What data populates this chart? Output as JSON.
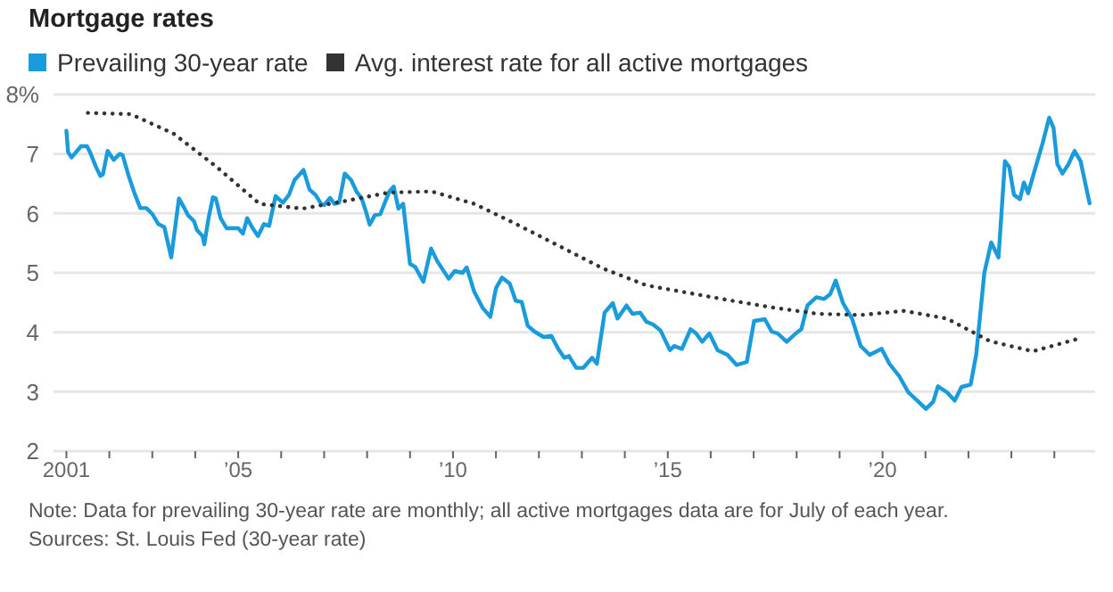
{
  "chart_data": {
    "type": "line",
    "title": "Mortgage rates",
    "legend": "top left",
    "grid": "y",
    "marker": "none",
    "xlim": [
      2000.7,
      2024.95
    ],
    "xticks": [
      {
        "value": 2001,
        "label": "2001"
      },
      {
        "value": 2002,
        "label": null
      },
      {
        "value": 2003,
        "label": null
      },
      {
        "value": 2004,
        "label": null
      },
      {
        "value": 2005,
        "label": "’05"
      },
      {
        "value": 2006,
        "label": null
      },
      {
        "value": 2007,
        "label": null
      },
      {
        "value": 2008,
        "label": null
      },
      {
        "value": 2009,
        "label": null
      },
      {
        "value": 2010,
        "label": "’10"
      },
      {
        "value": 2011,
        "label": null
      },
      {
        "value": 2012,
        "label": null
      },
      {
        "value": 2013,
        "label": null
      },
      {
        "value": 2014,
        "label": null
      },
      {
        "value": 2015,
        "label": "’15"
      },
      {
        "value": 2016,
        "label": null
      },
      {
        "value": 2017,
        "label": null
      },
      {
        "value": 2018,
        "label": null
      },
      {
        "value": 2019,
        "label": null
      },
      {
        "value": 2020,
        "label": "’20"
      },
      {
        "value": 2021,
        "label": null
      },
      {
        "value": 2022,
        "label": null
      },
      {
        "value": 2023,
        "label": null
      },
      {
        "value": 2024,
        "label": null
      }
    ],
    "ylim": [
      2,
      8
    ],
    "yticks": [
      2,
      3,
      4,
      5,
      6,
      7,
      {
        "value": 8,
        "label": "8%"
      }
    ],
    "series": [
      {
        "name": "Prevailing 30-year rate",
        "color": "#1a9bdb",
        "line_style": "solid",
        "x": [
          2001.0,
          2001.04,
          2001.12,
          2001.34,
          2001.48,
          2001.55,
          2001.69,
          2001.79,
          2001.85,
          2001.96,
          2002.1,
          2002.24,
          2002.31,
          2002.45,
          2002.59,
          2002.72,
          2002.86,
          2003.0,
          2003.14,
          2003.28,
          2003.44,
          2003.62,
          2003.76,
          2003.83,
          2003.97,
          2004.04,
          2004.17,
          2004.21,
          2004.31,
          2004.41,
          2004.48,
          2004.59,
          2004.73,
          2005.0,
          2005.11,
          2005.21,
          2005.32,
          2005.46,
          2005.6,
          2005.72,
          2005.87,
          2006.04,
          2006.18,
          2006.31,
          2006.52,
          2006.66,
          2006.8,
          2006.93,
          2007.0,
          2007.14,
          2007.24,
          2007.35,
          2007.48,
          2007.63,
          2007.76,
          2007.87,
          2007.97,
          2008.06,
          2008.18,
          2008.31,
          2008.52,
          2008.62,
          2008.73,
          2008.84,
          2009.0,
          2009.12,
          2009.31,
          2009.49,
          2009.63,
          2009.9,
          2010.04,
          2010.22,
          2010.32,
          2010.49,
          2010.69,
          2010.87,
          2011.0,
          2011.14,
          2011.32,
          2011.46,
          2011.6,
          2011.74,
          2011.9,
          2012.11,
          2012.29,
          2012.45,
          2012.59,
          2012.7,
          2012.87,
          2013.03,
          2013.24,
          2013.35,
          2013.53,
          2013.72,
          2013.83,
          2014.04,
          2014.18,
          2014.36,
          2014.5,
          2014.66,
          2014.83,
          2015.05,
          2015.15,
          2015.33,
          2015.53,
          2015.66,
          2015.8,
          2015.97,
          2016.16,
          2016.39,
          2016.6,
          2016.84,
          2017.01,
          2017.26,
          2017.42,
          2017.56,
          2017.77,
          2017.98,
          2018.11,
          2018.25,
          2018.46,
          2018.64,
          2018.78,
          2018.91,
          2019.08,
          2019.29,
          2019.49,
          2019.7,
          2019.98,
          2020.16,
          2020.39,
          2020.6,
          2020.81,
          2021.01,
          2021.18,
          2021.29,
          2021.5,
          2021.68,
          2021.84,
          2022.05,
          2022.18,
          2022.37,
          2022.53,
          2022.7,
          2022.85,
          2022.95,
          2023.06,
          2023.2,
          2023.29,
          2023.39,
          2023.54,
          2023.73,
          2023.88,
          2023.98,
          2024.07,
          2024.19,
          2024.33,
          2024.47,
          2024.61,
          2024.82
        ],
        "values": [
          7.39,
          7.03,
          6.94,
          7.13,
          7.13,
          7.03,
          6.78,
          6.63,
          6.66,
          7.05,
          6.9,
          7.0,
          6.98,
          6.63,
          6.33,
          6.09,
          6.09,
          5.99,
          5.82,
          5.77,
          5.26,
          6.25,
          6.07,
          5.97,
          5.87,
          5.72,
          5.62,
          5.48,
          5.92,
          6.27,
          6.25,
          5.92,
          5.75,
          5.75,
          5.66,
          5.92,
          5.77,
          5.62,
          5.82,
          5.79,
          6.29,
          6.18,
          6.31,
          6.56,
          6.73,
          6.4,
          6.31,
          6.16,
          6.14,
          6.26,
          6.16,
          6.18,
          6.67,
          6.56,
          6.36,
          6.26,
          6.04,
          5.81,
          5.97,
          5.99,
          6.37,
          6.45,
          6.08,
          6.16,
          5.15,
          5.1,
          4.85,
          5.41,
          5.2,
          4.9,
          5.03,
          5.0,
          5.09,
          4.69,
          4.41,
          4.26,
          4.74,
          4.92,
          4.82,
          4.53,
          4.51,
          4.11,
          4.01,
          3.92,
          3.94,
          3.72,
          3.57,
          3.6,
          3.4,
          3.4,
          3.57,
          3.47,
          4.33,
          4.49,
          4.23,
          4.45,
          4.31,
          4.33,
          4.18,
          4.13,
          4.03,
          3.7,
          3.77,
          3.72,
          4.05,
          3.98,
          3.84,
          3.98,
          3.7,
          3.62,
          3.45,
          3.5,
          4.19,
          4.22,
          4.01,
          3.98,
          3.84,
          3.98,
          4.05,
          4.45,
          4.59,
          4.56,
          4.64,
          4.87,
          4.49,
          4.23,
          3.77,
          3.62,
          3.72,
          3.47,
          3.26,
          2.99,
          2.85,
          2.71,
          2.83,
          3.09,
          2.99,
          2.85,
          3.08,
          3.12,
          3.62,
          5.0,
          5.51,
          5.26,
          6.88,
          6.78,
          6.31,
          6.24,
          6.52,
          6.34,
          6.72,
          7.19,
          7.61,
          7.44,
          6.83,
          6.67,
          6.83,
          7.05,
          6.88,
          6.17
        ]
      },
      {
        "name": "Avg. interest rate for all active mortgages",
        "color": "#333333",
        "line_style": "dotted",
        "x": [
          2001.5,
          2002.5,
          2003.5,
          2004.5,
          2005.5,
          2006.5,
          2007.5,
          2008.5,
          2009.5,
          2010.5,
          2011.5,
          2012.5,
          2013.5,
          2014.5,
          2015.5,
          2016.5,
          2017.5,
          2018.5,
          2019.5,
          2020.5,
          2021.5,
          2022.5,
          2023.5,
          2024.5
        ],
        "values": [
          7.69,
          7.67,
          7.34,
          6.78,
          6.16,
          6.08,
          6.21,
          6.35,
          6.37,
          6.16,
          5.81,
          5.44,
          5.07,
          4.79,
          4.66,
          4.53,
          4.41,
          4.31,
          4.29,
          4.36,
          4.23,
          3.85,
          3.68,
          3.88
        ]
      }
    ],
    "annotations": [
      "Note: Data for prevailing 30-year rate are monthly; all active mortgages data are for July of each year.",
      "Sources: St. Louis Fed (30-year rate)"
    ]
  }
}
